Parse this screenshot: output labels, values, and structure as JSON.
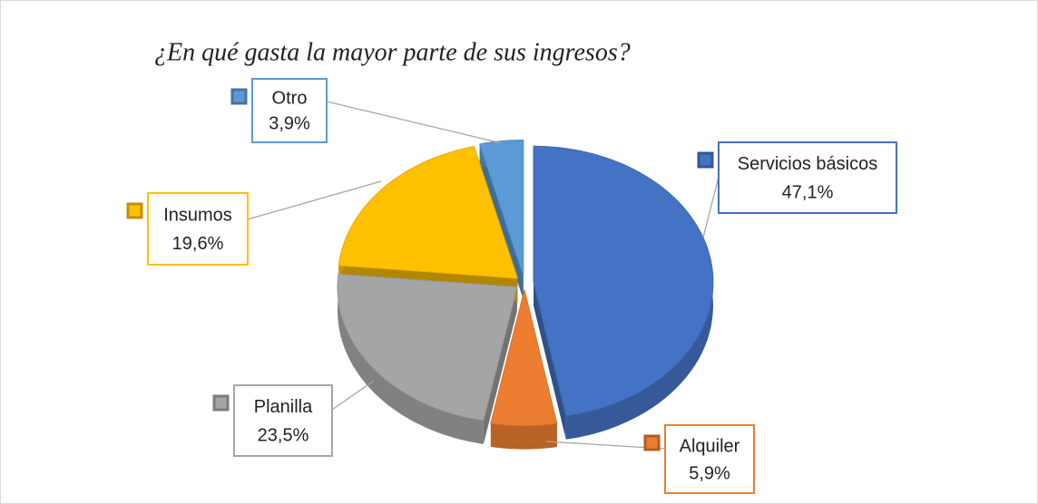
{
  "chart_data": {
    "type": "pie",
    "title": "¿En qué gasta la mayor parte de sus ingresos?",
    "categories": [
      "Servicios básicos",
      "Alquiler",
      "Planilla",
      "Insumos",
      "Otro"
    ],
    "values": [
      47.1,
      5.9,
      23.5,
      19.6,
      3.9
    ],
    "value_labels": [
      "47,1%",
      "5,9%",
      "23,5%",
      "19,6%",
      "3,9%"
    ],
    "colors": [
      "#4472c4",
      "#ed7d31",
      "#a5a5a5",
      "#ffc000",
      "#5b9bd5"
    ]
  }
}
